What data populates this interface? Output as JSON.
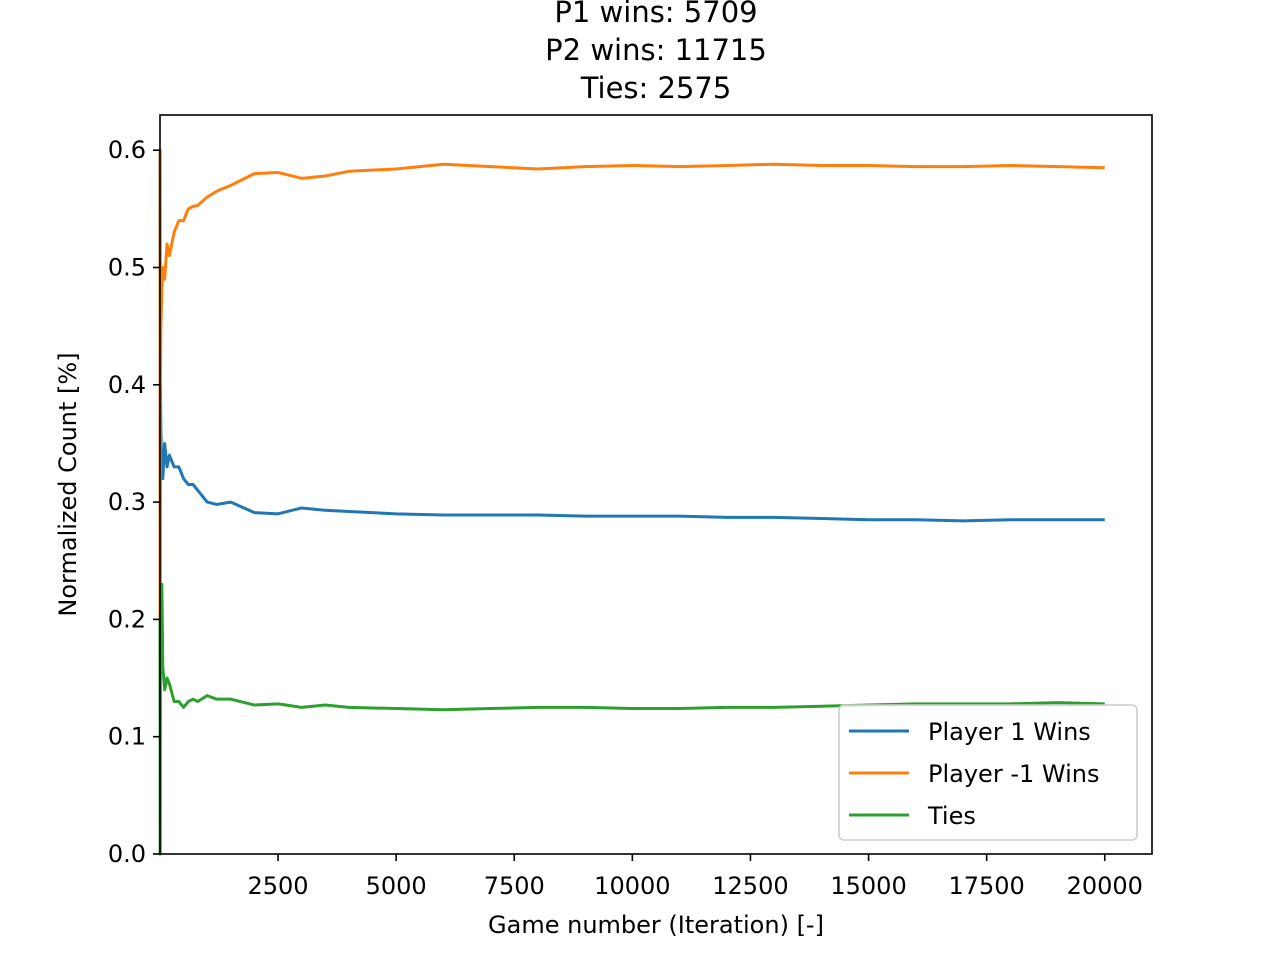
{
  "chart_data": {
    "type": "line",
    "title_lines": [
      "P1 wins: 5709",
      "P2 wins: 11715",
      "Ties: 2575"
    ],
    "xlabel": "Game number (Iteration) [-]",
    "ylabel": "Normalized Count [%]",
    "xlim": [
      1,
      21000
    ],
    "ylim": [
      0,
      0.63
    ],
    "xticks": [
      2500,
      5000,
      7500,
      10000,
      12500,
      15000,
      17500,
      20000
    ],
    "yticks": [
      0.0,
      0.1,
      0.2,
      0.3,
      0.4,
      0.5,
      0.6
    ],
    "grid": false,
    "legend_position": "lower-right",
    "series": [
      {
        "name": "Player 1 Wins",
        "color": "#1f77b4",
        "x": [
          1,
          5,
          10,
          20,
          40,
          60,
          100,
          150,
          200,
          300,
          400,
          500,
          600,
          700,
          800,
          1000,
          1200,
          1500,
          2000,
          2500,
          3000,
          3500,
          4000,
          5000,
          6000,
          7000,
          8000,
          9000,
          10000,
          11000,
          12000,
          13000,
          14000,
          15000,
          16000,
          17000,
          18000,
          19000,
          20000
        ],
        "values": [
          0.6,
          0.2,
          0.4,
          0.36,
          0.33,
          0.32,
          0.35,
          0.33,
          0.34,
          0.33,
          0.33,
          0.32,
          0.315,
          0.315,
          0.31,
          0.3,
          0.298,
          0.3,
          0.291,
          0.29,
          0.295,
          0.293,
          0.292,
          0.29,
          0.289,
          0.289,
          0.289,
          0.288,
          0.288,
          0.288,
          0.287,
          0.287,
          0.286,
          0.285,
          0.285,
          0.284,
          0.285,
          0.285,
          0.285
        ]
      },
      {
        "name": "Player -1 Wins",
        "color": "#ff7f0e",
        "x": [
          1,
          5,
          10,
          20,
          40,
          60,
          100,
          150,
          200,
          300,
          400,
          500,
          600,
          700,
          800,
          1000,
          1200,
          1500,
          2000,
          2500,
          3000,
          3500,
          4000,
          5000,
          6000,
          7000,
          8000,
          9000,
          10000,
          11000,
          12000,
          13000,
          14000,
          15000,
          16000,
          17000,
          18000,
          19000,
          20000
        ],
        "values": [
          0.2,
          0.6,
          0.4,
          0.45,
          0.48,
          0.5,
          0.49,
          0.52,
          0.51,
          0.53,
          0.54,
          0.54,
          0.55,
          0.552,
          0.553,
          0.56,
          0.565,
          0.57,
          0.58,
          0.581,
          0.576,
          0.578,
          0.582,
          0.584,
          0.588,
          0.586,
          0.584,
          0.586,
          0.587,
          0.586,
          0.587,
          0.588,
          0.587,
          0.587,
          0.586,
          0.586,
          0.587,
          0.586,
          0.585
        ]
      },
      {
        "name": "Ties",
        "color": "#2ca02c",
        "x": [
          1,
          5,
          10,
          20,
          40,
          60,
          100,
          150,
          200,
          300,
          400,
          500,
          600,
          700,
          800,
          1000,
          1200,
          1500,
          2000,
          2500,
          3000,
          3500,
          4000,
          5000,
          6000,
          7000,
          8000,
          9000,
          10000,
          11000,
          12000,
          13000,
          14000,
          15000,
          16000,
          17000,
          18000,
          19000,
          20000
        ],
        "values": [
          0.2,
          0.0,
          0.2,
          0.19,
          0.23,
          0.16,
          0.14,
          0.15,
          0.145,
          0.13,
          0.13,
          0.125,
          0.13,
          0.132,
          0.13,
          0.135,
          0.132,
          0.132,
          0.127,
          0.128,
          0.125,
          0.127,
          0.125,
          0.124,
          0.123,
          0.124,
          0.125,
          0.125,
          0.124,
          0.124,
          0.125,
          0.125,
          0.126,
          0.127,
          0.128,
          0.128,
          0.128,
          0.129,
          0.128
        ]
      }
    ]
  }
}
